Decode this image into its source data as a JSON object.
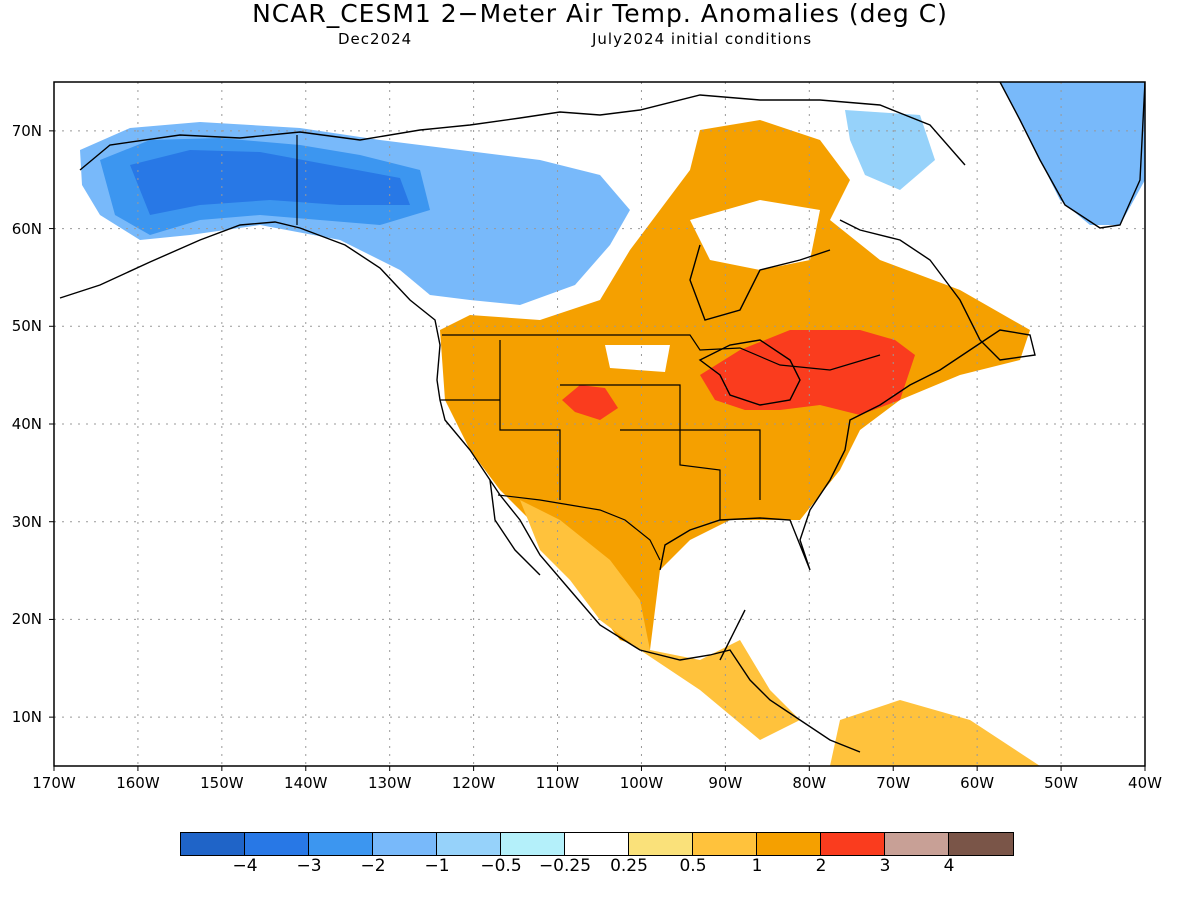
{
  "title": "NCAR_CESM1 2−Meter Air Temp. Anomalies (deg C)",
  "subtitle_left": "Dec2024",
  "subtitle_right": "July2024 initial conditions",
  "map": {
    "lon_range": [
      -170,
      -40
    ],
    "lat_range": [
      5,
      75
    ],
    "grid": "dotted",
    "lat_labels": [
      "70N",
      "60N",
      "50N",
      "40N",
      "30N",
      "20N",
      "10N"
    ],
    "lon_labels": [
      "170W",
      "160W",
      "150W",
      "140W",
      "130W",
      "120W",
      "110W",
      "100W",
      "90W",
      "80W",
      "70W",
      "60W",
      "50W",
      "40W"
    ]
  },
  "colorbar": {
    "colors": [
      "#1f64c8",
      "#2878e6",
      "#3c96f0",
      "#78b9fa",
      "#96d2fa",
      "#b4f0fa",
      "#ffffff",
      "#fae17a",
      "#ffc23c",
      "#f5a000",
      "#fa3c1e",
      "#c8a096",
      "#7a5548"
    ],
    "labels": [
      "−4",
      "−3",
      "−2",
      "−1",
      "−0.5",
      "−0.25",
      "0.25",
      "0.5",
      "1",
      "2",
      "3",
      "4"
    ]
  }
}
